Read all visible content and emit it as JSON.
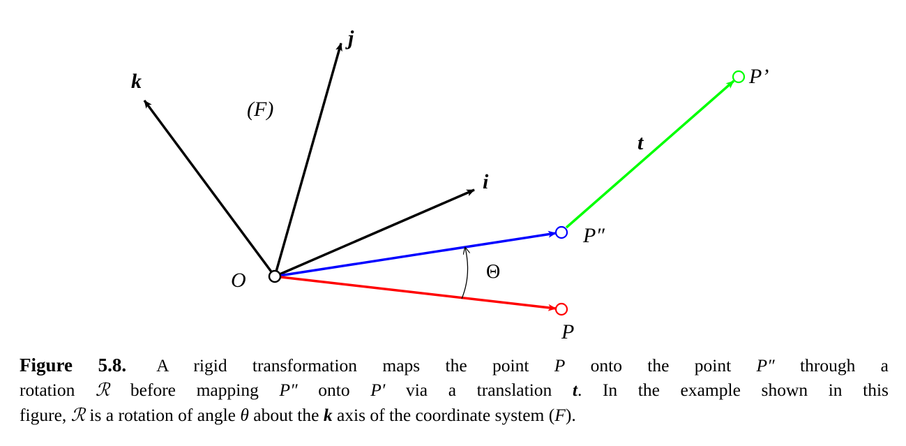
{
  "figure": {
    "labels": {
      "origin": "O",
      "frame": "(F)",
      "axis_i": "i",
      "axis_j": "j",
      "axis_k": "k",
      "point_p": "P",
      "point_p_double_prime": "P″",
      "point_p_prime": "P’",
      "translation": "t",
      "angle": "Θ"
    },
    "colors": {
      "axes": "#000000",
      "rotated_vector": "#0000ff",
      "original_vector": "#ff0000",
      "translation_vector": "#00ff00"
    }
  },
  "caption": {
    "label": "Figure 5.8.",
    "line1": {
      "a": "A rigid transformation maps the point ",
      "p": "P",
      "b": " onto the point ",
      "pdp": "P″",
      "c": " through a"
    },
    "line2": {
      "a": "rotation ",
      "r": "ℛ",
      "b": " before mapping ",
      "pdp": "P″",
      "c": " onto ",
      "pp": "P′",
      "d": " via a translation ",
      "t": "t",
      "e": ". In the example shown in this"
    },
    "line3": {
      "a": "figure, ",
      "r": "ℛ",
      "b": " is a rotation of angle ",
      "theta": "θ",
      "c": " about the ",
      "k": "k",
      "d": " axis of the coordinate system (",
      "f": "F",
      "e": ")."
    }
  }
}
